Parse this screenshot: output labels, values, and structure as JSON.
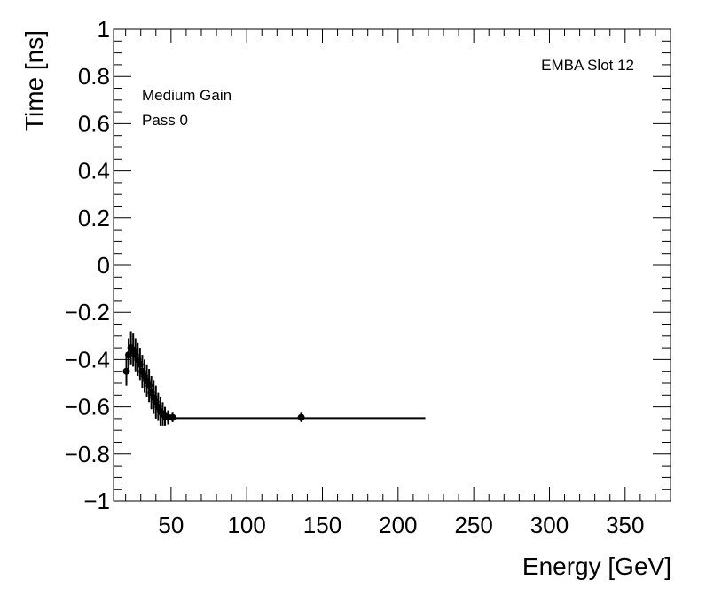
{
  "chart_data": {
    "type": "scatter",
    "title": "",
    "xlabel": "Energy [GeV]",
    "ylabel": "Time [ns]",
    "xlim": [
      12,
      380
    ],
    "ylim": [
      -1,
      1
    ],
    "x_ticks": [
      50,
      100,
      150,
      200,
      250,
      300,
      350
    ],
    "y_ticks": [
      1,
      0.8,
      0.6,
      0.4,
      0.2,
      0,
      -0.2,
      -0.4,
      -0.6,
      -0.8,
      -1
    ],
    "y_tick_labels": [
      "1",
      "0.8",
      "0.6",
      "0.4",
      "0.2",
      "0",
      "−0.2",
      "−0.4",
      "−0.6",
      "−0.8",
      "−1"
    ],
    "annotations": {
      "top_right": "EMBA Slot 12",
      "line1": "Medium Gain",
      "line2": "Pass 0"
    },
    "grid": false,
    "legend": "none",
    "marker_color": "#000000",
    "points": [
      {
        "x": 20.5,
        "y": -0.45,
        "yerr": 0.06
      },
      {
        "x": 22.0,
        "y": -0.38,
        "yerr": 0.07
      },
      {
        "x": 23.5,
        "y": -0.35,
        "yerr": 0.07
      },
      {
        "x": 25.0,
        "y": -0.36,
        "yerr": 0.07
      },
      {
        "x": 26.5,
        "y": -0.38,
        "yerr": 0.07
      },
      {
        "x": 28.0,
        "y": -0.4,
        "yerr": 0.07
      },
      {
        "x": 29.5,
        "y": -0.42,
        "yerr": 0.07
      },
      {
        "x": 31.0,
        "y": -0.45,
        "yerr": 0.07
      },
      {
        "x": 32.5,
        "y": -0.47,
        "yerr": 0.07
      },
      {
        "x": 34.0,
        "y": -0.49,
        "yerr": 0.07
      },
      {
        "x": 35.5,
        "y": -0.51,
        "yerr": 0.07
      },
      {
        "x": 37.0,
        "y": -0.54,
        "yerr": 0.07
      },
      {
        "x": 38.5,
        "y": -0.56,
        "yerr": 0.07
      },
      {
        "x": 40.0,
        "y": -0.58,
        "yerr": 0.07
      },
      {
        "x": 41.5,
        "y": -0.6,
        "yerr": 0.06
      },
      {
        "x": 43.0,
        "y": -0.62,
        "yerr": 0.06
      },
      {
        "x": 44.5,
        "y": -0.63,
        "yerr": 0.05
      },
      {
        "x": 46.0,
        "y": -0.64,
        "yerr": 0.04
      },
      {
        "x": 48.0,
        "y": -0.645,
        "yerr": 0.03
      },
      {
        "x": 51.0,
        "y": -0.645,
        "yerr": 0.02
      },
      {
        "x": 136.0,
        "y": -0.645,
        "yerr": 0.02
      }
    ],
    "fit_line": {
      "x": [
        51,
        218
      ],
      "y": [
        -0.648,
        -0.648
      ]
    }
  }
}
